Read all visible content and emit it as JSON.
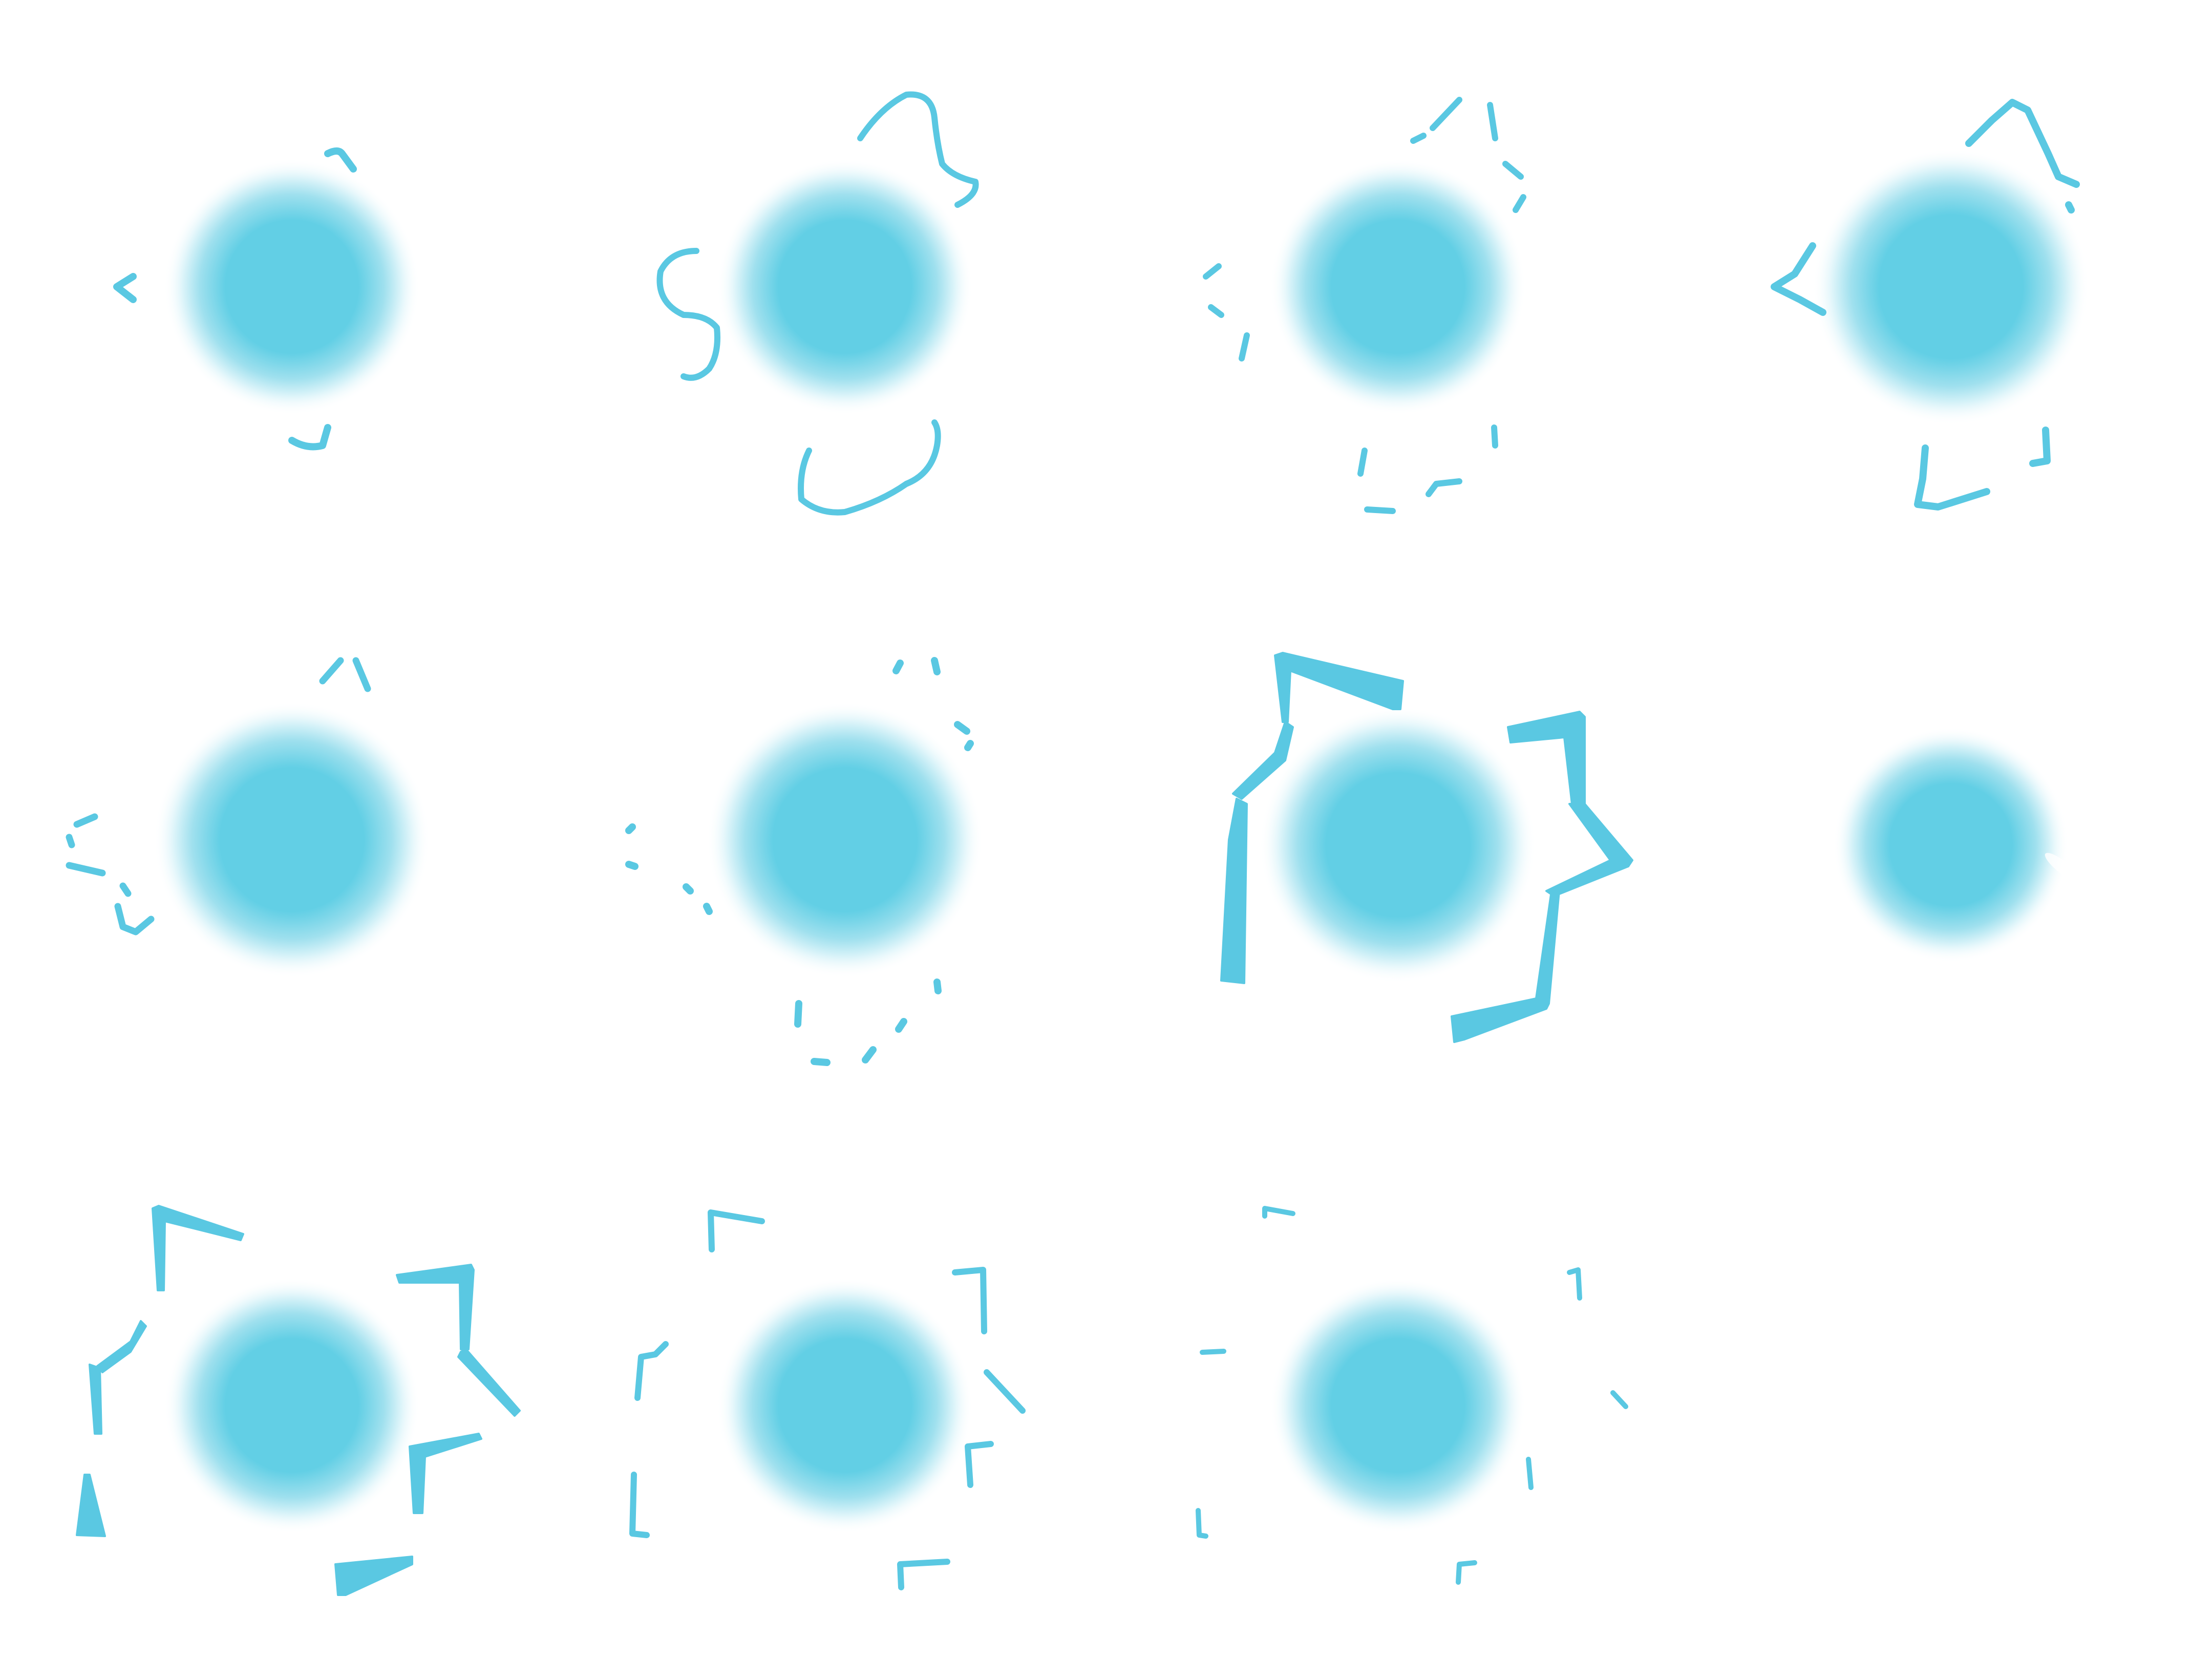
{
  "sprite_sheet": {
    "layout": {
      "columns": 4,
      "rows": 3
    },
    "colors": {
      "orb": "#62cfe5",
      "stroke": "#5ac8e2",
      "background": "#ffffff"
    },
    "frames": [
      {
        "id": 1,
        "contents": "orb-with-small-sparks"
      },
      {
        "id": 2,
        "contents": "orb-with-curly-swirls"
      },
      {
        "id": 3,
        "contents": "orb-with-dashed-swirls"
      },
      {
        "id": 4,
        "contents": "orb-with-chevron-sparks"
      },
      {
        "id": 5,
        "contents": "orb-with-faint-sparks"
      },
      {
        "id": 6,
        "contents": "orb-with-dot-trail"
      },
      {
        "id": 7,
        "contents": "orb-with-bold-starburst"
      },
      {
        "id": 8,
        "contents": "orb-only"
      },
      {
        "id": 9,
        "contents": "orb-with-starburst-fragments"
      },
      {
        "id": 10,
        "contents": "orb-with-thin-fragments"
      },
      {
        "id": 11,
        "contents": "orb-with-tiny-fragments"
      },
      {
        "id": 12,
        "contents": "empty"
      }
    ]
  }
}
